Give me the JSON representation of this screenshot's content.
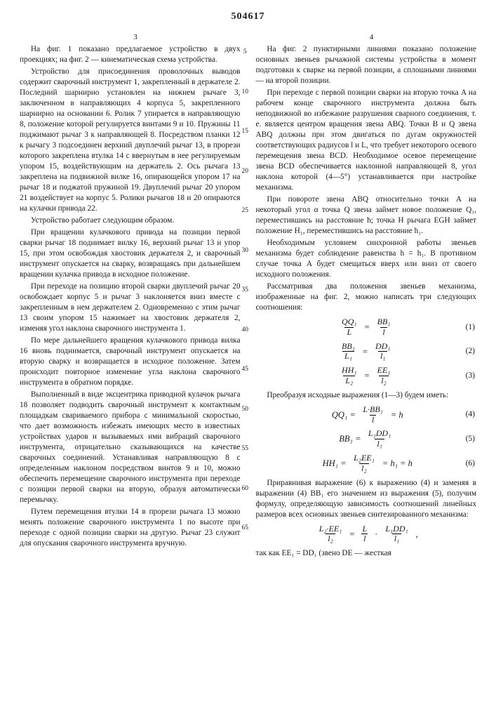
{
  "doc": {
    "number": "504617",
    "col_left": "3",
    "col_right": "4",
    "gutter_numbers": [
      "5",
      "10",
      "15",
      "20",
      "25",
      "30",
      "35",
      "40",
      "45",
      "50",
      "55",
      "60",
      "65"
    ]
  },
  "left": {
    "p1": "На фиг. 1 показано предлагаемое устройство в двух проекциях; на фиг. 2 — кинематическая схема устройства.",
    "p2": "Устройство для присоединения проволочных выводов содержит сварочный инструмент 1, закрепленный в держателе 2. Последний шарнирно установлен на нижнем рычаге 3, заключенном в направляющих 4 корпуса 5, закрепленного шарнирно на основании 6. Ролик 7 упирается в направляющую 8, положение которой регулируется винтами 9 и 10. Пружины 11 поджимают рычаг 3 к направляющей 8. Посредством планки 12 к рычагу 3 подсоединен верхний двуплечий рычаг 13, в прорези которого закреплена втулка 14 с ввернутым в нее регулируемым упором 15, воздействующим на держатель 2. Ось рычага 13 закреплена на подвижной вилке 16, опирающейся упором 17 на рычаг 18 и поджатой пружиной 19. Двуплечий рычаг 20 упором 21 воздействует на корпус 5. Ролики рычагов 18 и 20 опираются на кулачки привода 22.",
    "p3": "Устройство работает следующим образом.",
    "p4": "При вращении кулачкового привода на позиции первой сварки рычаг 18 поднимает вилку 16, верхний рычаг 13 и упор 15, при этом освобождая хвостовик держателя 2, и сварочный инструмент опускается на сварку, возвращаясь при дальнейшем вращении кулачка привода в исходное положение.",
    "p5": "При переходе на позицию второй сварки двуплечий рычаг 20 освобождает корпус 5 и рычаг 3 наклоняется вниз вместе с закрепленным в нем держателем 2. Одновременно с этим рычаг 13 своим упором 15 нажимает на хвостовик держателя 2, изменяя угол наклона сварочного инструмента 1.",
    "p6": "По мере дальнейшего вращения кулачкового привода вилка 16 вновь поднимается, сварочный инструмент опускается на вторую сварку и возвращается в исходное положение. Затем происходит повторное изменение угла наклона сварочного инструмента в обратном порядке.",
    "p7": "Выполненный в виде эксцентрика приводной кулачок рычага 18 позволяет подводить сварочный инструмент к контактным площадкам свариваемого прибора с минимальной скоростью, что дает возможность избежать имеющих место в известных устройствах ударов и вызываемых ими вибраций сварочного инструмента, отрицательно сказывающихся на качестве сварочных соединений. Устанавливая направляющую 8 с определенным наклоном посредством винтов 9 и 10, можно обеспечить перемещение сварочного инструмента при переходе с позиции первой сварки на вторую, образуя автоматически перемычку.",
    "p8": "Путем перемещения втулки 14 в прорези рычага 13 можно менять положение сварочного инструмента 1 по высоте при переходе с одной позиции сварки на другую. Рычаг 23 служит для опускания сварочного инструмента вручную."
  },
  "right": {
    "p1": "На фиг. 2 пунктирными линиями показано положение основных звеньев рычажной системы устройства в момент подготовки к сварке на первой позиции, а сплошными линиями — на второй позиции.",
    "p2": "При переходе с первой позиции сварки на вторую точка A на рабочем конце сварочного инструмента должна быть неподвижной во избежание разрушения сварного соединения, т. е. является центром вращения звена ABQ. Точки B и Q звена ABQ должны при этом двигаться по дугам окружностей соответствующих радиусов l и L, что требует некоторого осевого перемещения звена BCD. Необходимое осевое перемещение звена BCD обеспечивается наклонной направляющей 8, угол наклона которой (4—5°) устанавливается при настройке механизма.",
    "p3": "При повороте звена ABQ относительно точки A на некоторый угол α точка Q звена займет новое положение Q₁, переместившись на расстояние h; точка H рычага EGH займет положение H₁, переместившись на расстояние h₁.",
    "p4": "Необходимым условием синхронной работы звеньев механизма будет соблюдение равенства h = h₁. В противном случае точка A будет смещаться вверх или вниз от своего исходного положения.",
    "p5": "Рассматривая два положения звеньев механизма, изображенные на фиг. 2, можно написать три следующих соотношения:",
    "f1": {
      "lhs_num": "QQ₁",
      "lhs_den": "L",
      "rhs_num": "BB₁",
      "rhs_den": "l",
      "tag": "(1)"
    },
    "f2": {
      "lhs_num": "BB₁",
      "lhs_den": "L₁",
      "rhs_num": "DD₁",
      "rhs_den": "l₁",
      "tag": "(2)"
    },
    "f3": {
      "lhs_num": "HH₁",
      "lhs_den": "L₂",
      "rhs_num": "EE₁",
      "rhs_den": "l₂",
      "tag": "(3)"
    },
    "p6": "Преобразуя исходные выражения (1—3) будем иметь:",
    "f4": {
      "lhs": "QQ₁",
      "rhs_num": "L·BB₁",
      "rhs_den": "l",
      "after": "= h",
      "tag": "(4)"
    },
    "f5": {
      "lhs": "BB₁",
      "rhs_num": "L₁DD₁",
      "rhs_den": "l₁",
      "after": "",
      "tag": "(5)"
    },
    "f6": {
      "lhs": "HH₁",
      "rhs_num": "L₂EE₁",
      "rhs_den": "l₂",
      "after": "= h₁ = h",
      "tag": "(6)"
    },
    "p7": "Приравнивая выражение (6) к выражению (4) и заменяя в выражении (4) BB₁ его значением из выражения (5), получим формулу, определяющую зависимость соотношений линейных размеров всех основных звеньев синтезированного механизма:",
    "f7": {
      "lhs_num": "L₂·EE₁",
      "lhs_den": "l₂",
      "mid_num": "L",
      "mid_den": "l",
      "end_num": "L₁DD₁",
      "end_den": "l₁",
      "comma": ","
    },
    "p8": "так как  EE₁ = DD₁  (звено  DE — жесткая"
  }
}
